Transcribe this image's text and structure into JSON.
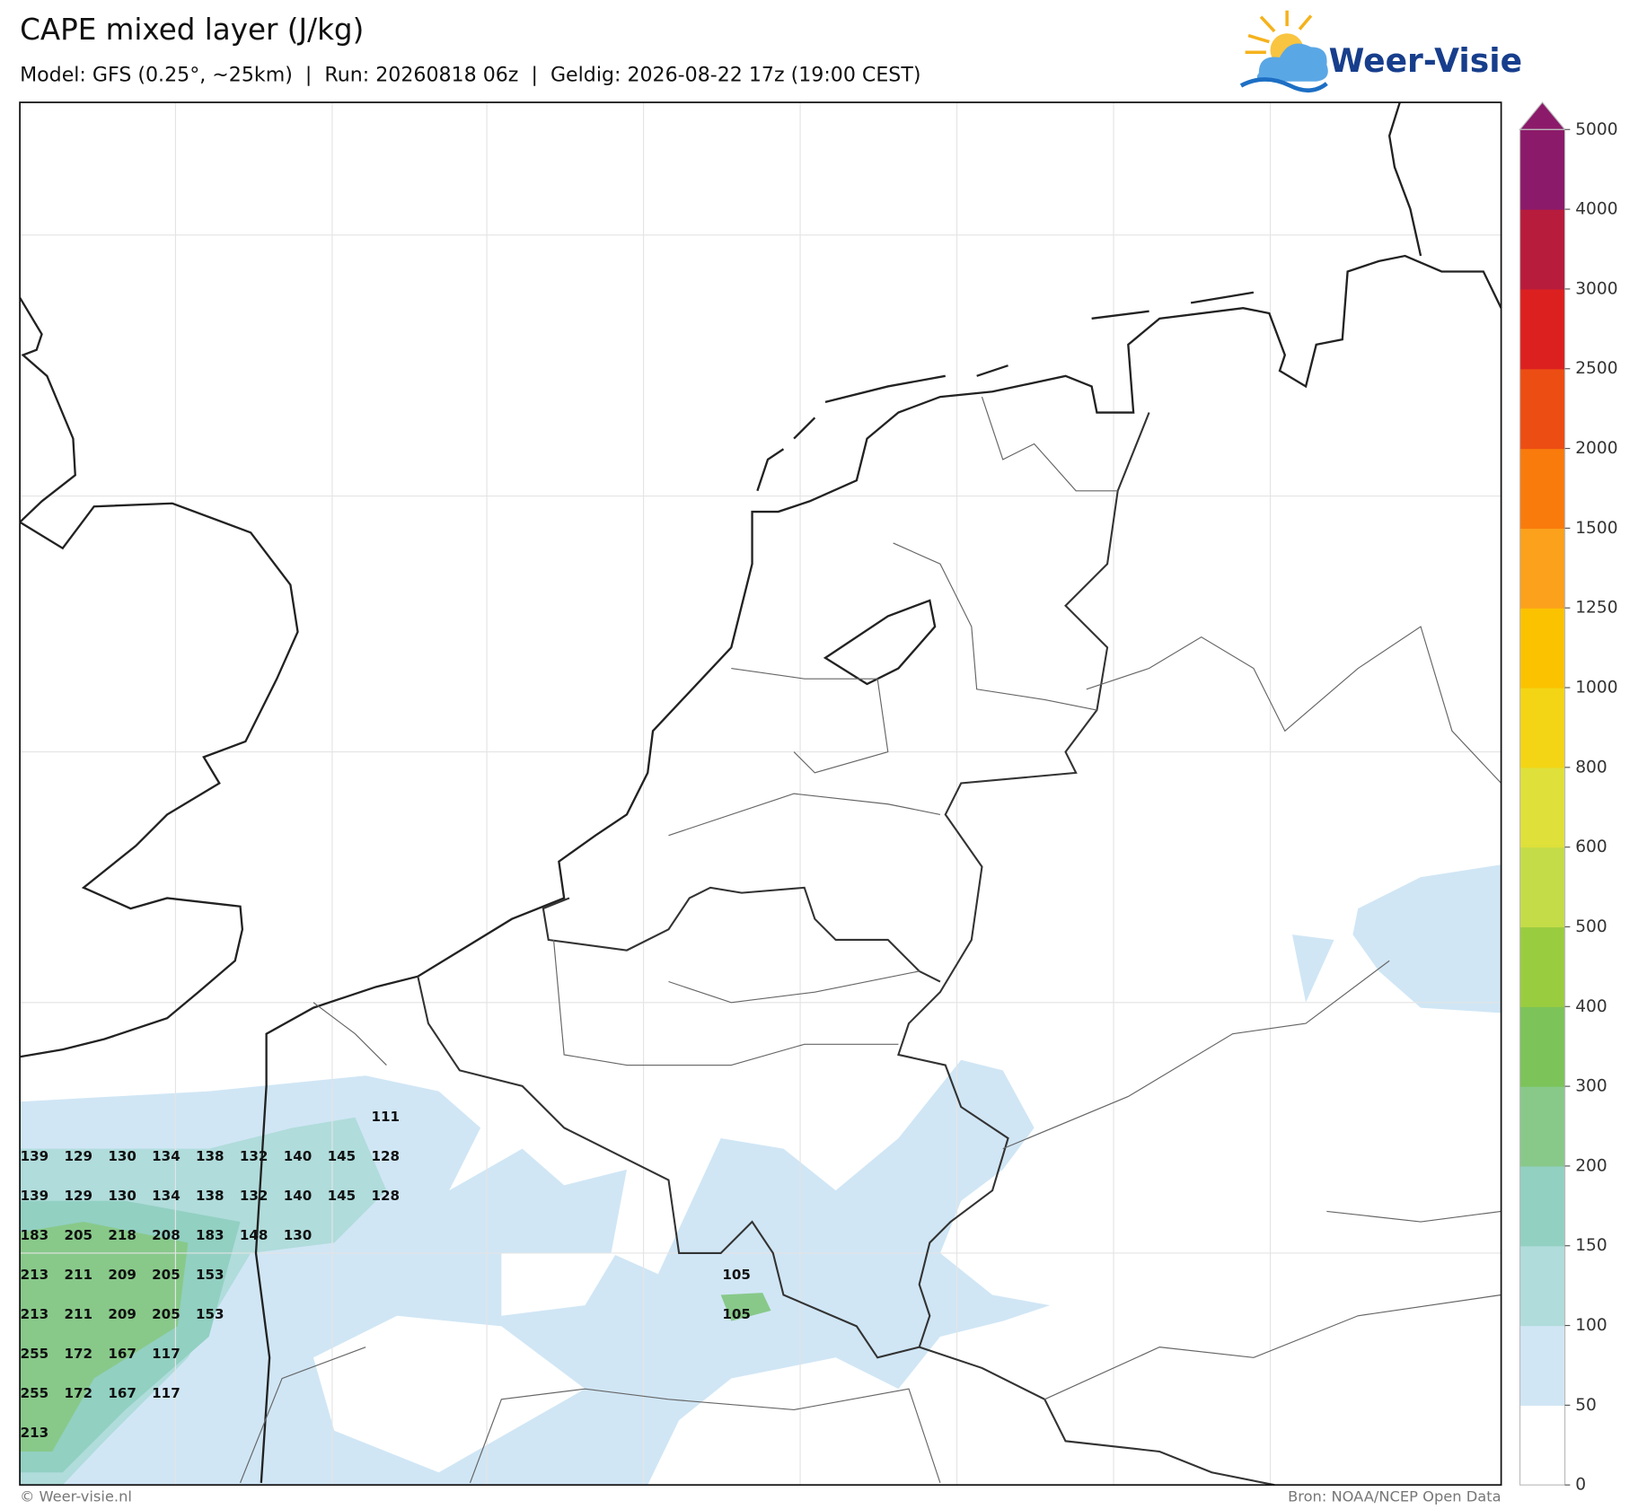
{
  "header": {
    "title": "CAPE mixed layer (J/kg)",
    "subtitle": "Model: GFS (0.25°, ~25km)  |  Run: 20260818 06z  |  Geldig: 2026-08-22 17z (19:00 CEST)"
  },
  "logo": "Weer-Visie",
  "colorbar": {
    "levels": [
      0,
      50,
      100,
      150,
      200,
      300,
      400,
      500,
      600,
      800,
      1000,
      1250,
      1500,
      2000,
      2500,
      3000,
      4000,
      5000
    ],
    "colors": [
      "#ffffff",
      "#d0e6f5",
      "#b0dcdb",
      "#92d0c2",
      "#88c98a",
      "#7cc35a",
      "#9acc3f",
      "#c3dc47",
      "#dfe03a",
      "#f3d515",
      "#fbc200",
      "#fba11c",
      "#f97b0c",
      "#ec4d13",
      "#dc2020",
      "#b81c3c",
      "#8c1a6a"
    ],
    "extend_color": "#8c1a6a"
  },
  "map_labels": [
    [
      null,
      null,
      null,
      null,
      null,
      null,
      null,
      null,
      111
    ],
    [
      139,
      129,
      130,
      134,
      138,
      132,
      140,
      145,
      128
    ],
    [
      139,
      129,
      130,
      134,
      138,
      132,
      140,
      145,
      128
    ],
    [
      183,
      205,
      218,
      208,
      183,
      148,
      130
    ],
    [
      213,
      211,
      209,
      205,
      153,
      null,
      null,
      null,
      null,
      null,
      null,
      null,
      null,
      null,
      null,
      null,
      105
    ],
    [
      213,
      211,
      209,
      205,
      153,
      null,
      null,
      null,
      null,
      null,
      null,
      null,
      null,
      null,
      null,
      null,
      105
    ],
    [
      255,
      172,
      167,
      117
    ],
    [
      255,
      172,
      167,
      117
    ],
    [
      213
    ]
  ],
  "footer": {
    "left": "© Weer-visie.nl",
    "right": "Bron: NOAA/NCEP Open Data"
  }
}
